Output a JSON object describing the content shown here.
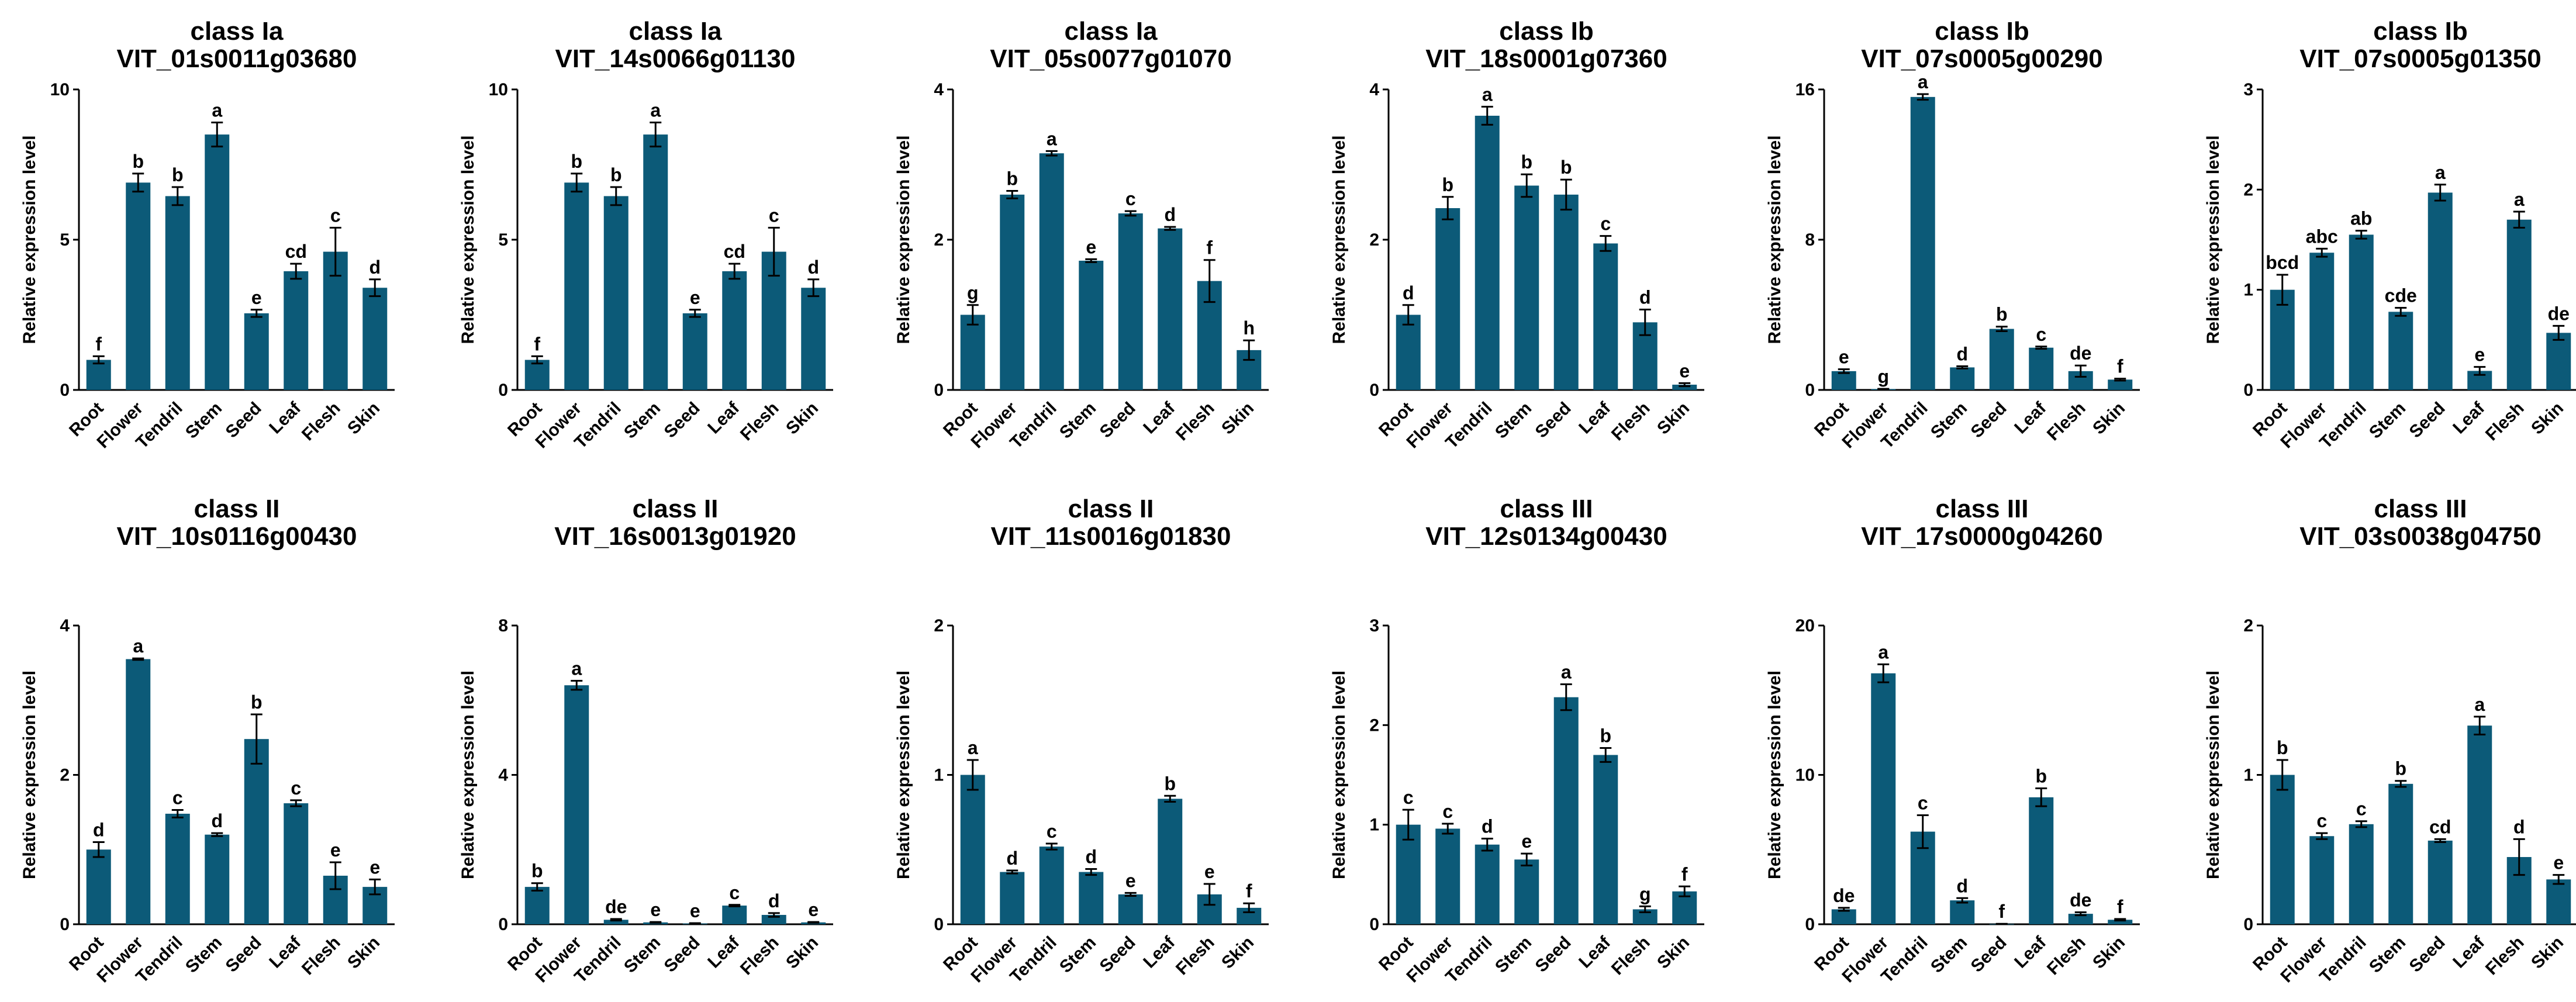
{
  "chart_data": [
    {
      "type": "bar",
      "title": [
        "class Ia",
        "VIT_01s0011g03680"
      ],
      "ylabel": "Relative expression level",
      "categories": [
        "Root",
        "Flower",
        "Tendril",
        "Stem",
        "Seed",
        "Leaf",
        "Flesh",
        "Skin"
      ],
      "values": [
        1.0,
        6.9,
        6.45,
        8.5,
        2.55,
        3.95,
        4.6,
        3.4
      ],
      "errors": [
        0.12,
        0.3,
        0.3,
        0.4,
        0.12,
        0.25,
        0.8,
        0.28
      ],
      "sig": [
        "f",
        "b",
        "b",
        "a",
        "e",
        "cd",
        "c",
        "d"
      ],
      "ylim": [
        0,
        10
      ],
      "yticks": [
        "0",
        "5",
        "10"
      ],
      "ytick_values": [
        0,
        5,
        10
      ]
    },
    {
      "type": "bar",
      "title": [
        "class Ia",
        "VIT_14s0066g01130"
      ],
      "ylabel": "Relative expression level",
      "categories": [
        "Root",
        "Flower",
        "Tendril",
        "Stem",
        "Seed",
        "Leaf",
        "Flesh",
        "Skin"
      ],
      "values": [
        1.0,
        6.9,
        6.45,
        8.5,
        2.55,
        3.95,
        4.6,
        3.4
      ],
      "errors": [
        0.12,
        0.3,
        0.3,
        0.4,
        0.12,
        0.25,
        0.8,
        0.28
      ],
      "sig": [
        "f",
        "b",
        "b",
        "a",
        "e",
        "cd",
        "c",
        "d"
      ],
      "ylim": [
        0,
        10
      ],
      "yticks": [
        "0",
        "5",
        "10"
      ],
      "ytick_values": [
        0,
        5,
        10
      ]
    },
    {
      "type": "bar",
      "title": [
        "class Ia",
        "VIT_05s0077g01070"
      ],
      "ylabel": "Relative expression level",
      "categories": [
        "Root",
        "Flower",
        "Tendril",
        "Stem",
        "Seed",
        "Leaf",
        "Flesh",
        "Skin"
      ],
      "values": [
        1.0,
        2.6,
        3.15,
        1.72,
        2.35,
        2.15,
        1.45,
        0.53
      ],
      "errors": [
        0.13,
        0.05,
        0.03,
        0.02,
        0.03,
        0.02,
        0.28,
        0.13
      ],
      "sig": [
        "g",
        "b",
        "a",
        "e",
        "c",
        "d",
        "f",
        "h"
      ],
      "ylim": [
        0,
        4
      ],
      "yticks": [
        "0",
        "2",
        "4"
      ],
      "ytick_values": [
        0,
        2,
        4
      ]
    },
    {
      "type": "bar",
      "title": [
        "class Ib",
        "VIT_18s0001g07360"
      ],
      "ylabel": "Relative expression level",
      "categories": [
        "Root",
        "Flower",
        "Tendril",
        "Stem",
        "Seed",
        "Leaf",
        "Flesh",
        "Skin"
      ],
      "values": [
        1.0,
        2.42,
        3.65,
        2.72,
        2.6,
        1.95,
        0.9,
        0.07
      ],
      "errors": [
        0.13,
        0.15,
        0.12,
        0.15,
        0.2,
        0.1,
        0.17,
        0.02
      ],
      "sig": [
        "d",
        "b",
        "a",
        "b",
        "b",
        "c",
        "d",
        "e"
      ],
      "ylim": [
        0,
        4
      ],
      "yticks": [
        "0",
        "2",
        "4"
      ],
      "ytick_values": [
        0,
        2,
        4
      ]
    },
    {
      "type": "bar",
      "title": [
        "class Ib",
        "VIT_07s0005g00290"
      ],
      "ylabel": "Relative expression level",
      "categories": [
        "Root",
        "Flower",
        "Tendril",
        "Stem",
        "Seed",
        "Leaf",
        "Flesh",
        "Skin"
      ],
      "values": [
        1.0,
        0.05,
        15.6,
        1.2,
        3.25,
        2.25,
        1.0,
        0.55
      ],
      "errors": [
        0.1,
        0.01,
        0.15,
        0.06,
        0.12,
        0.06,
        0.3,
        0.05
      ],
      "sig": [
        "e",
        "g",
        "a",
        "d",
        "b",
        "c",
        "de",
        "f"
      ],
      "ylim": [
        0,
        16
      ],
      "yticks": [
        "0",
        "8",
        "16"
      ],
      "ytick_values": [
        0,
        8,
        16
      ]
    },
    {
      "type": "bar",
      "title": [
        "class Ib",
        "VIT_07s0005g01350"
      ],
      "ylabel": "Relative expression level",
      "categories": [
        "Root",
        "Flower",
        "Tendril",
        "Stem",
        "Seed",
        "Leaf",
        "Flesh",
        "Skin"
      ],
      "values": [
        1.0,
        1.37,
        1.55,
        0.78,
        1.97,
        0.19,
        1.7,
        0.57
      ],
      "errors": [
        0.15,
        0.04,
        0.04,
        0.04,
        0.08,
        0.04,
        0.08,
        0.07
      ],
      "sig": [
        "bcd",
        "abc",
        "ab",
        "cde",
        "a",
        "e",
        "a",
        "de"
      ],
      "ylim": [
        0,
        3
      ],
      "yticks": [
        "0",
        "1",
        "2",
        "3"
      ],
      "ytick_values": [
        0,
        1,
        2,
        3
      ]
    },
    {
      "type": "bar",
      "title": [
        "class II",
        "VIT_10s0116g00430"
      ],
      "ylabel": "Relative expression level",
      "categories": [
        "Root",
        "Flower",
        "Tendril",
        "Stem",
        "Seed",
        "Leaf",
        "Flesh",
        "Skin"
      ],
      "values": [
        1.0,
        3.55,
        1.48,
        1.2,
        2.48,
        1.62,
        0.65,
        0.5
      ],
      "errors": [
        0.1,
        0.01,
        0.05,
        0.02,
        0.33,
        0.04,
        0.18,
        0.1
      ],
      "sig": [
        "d",
        "a",
        "c",
        "d",
        "b",
        "c",
        "e",
        "e"
      ],
      "ylim": [
        0,
        4
      ],
      "yticks": [
        "0",
        "2",
        "4"
      ],
      "ytick_values": [
        0,
        2,
        4
      ]
    },
    {
      "type": "bar",
      "title": [
        "class II",
        "VIT_16s0013g01920"
      ],
      "ylabel": "Relative expression level",
      "categories": [
        "Root",
        "Flower",
        "Tendril",
        "Stem",
        "Seed",
        "Leaf",
        "Flesh",
        "Skin"
      ],
      "values": [
        1.0,
        6.4,
        0.12,
        0.05,
        0.02,
        0.5,
        0.25,
        0.05
      ],
      "errors": [
        0.1,
        0.12,
        0.02,
        0.01,
        0.01,
        0.02,
        0.05,
        0.01
      ],
      "sig": [
        "b",
        "a",
        "de",
        "e",
        "e",
        "c",
        "d",
        "e"
      ],
      "ylim": [
        0,
        8
      ],
      "yticks": [
        "0",
        "4",
        "8"
      ],
      "ytick_values": [
        0,
        4,
        8
      ]
    },
    {
      "type": "bar",
      "title": [
        "class II",
        "VIT_11s0016g01830"
      ],
      "ylabel": "Relative expression level",
      "categories": [
        "Root",
        "Flower",
        "Tendril",
        "Stem",
        "Seed",
        "Leaf",
        "Flesh",
        "Skin"
      ],
      "values": [
        1.0,
        0.35,
        0.52,
        0.35,
        0.2,
        0.84,
        0.2,
        0.11
      ],
      "errors": [
        0.1,
        0.01,
        0.02,
        0.02,
        0.01,
        0.02,
        0.07,
        0.03
      ],
      "sig": [
        "a",
        "d",
        "c",
        "d",
        "e",
        "b",
        "e",
        "f"
      ],
      "ylim": [
        0,
        2
      ],
      "yticks": [
        "0",
        "1",
        "2"
      ],
      "ytick_values": [
        0,
        1,
        2
      ]
    },
    {
      "type": "bar",
      "title": [
        "class III",
        "VIT_12s0134g00430"
      ],
      "ylabel": "Relative expression level",
      "categories": [
        "Root",
        "Flower",
        "Tendril",
        "Stem",
        "Seed",
        "Leaf",
        "Flesh",
        "Skin"
      ],
      "values": [
        1.0,
        0.96,
        0.8,
        0.65,
        2.28,
        1.7,
        0.15,
        0.33
      ],
      "errors": [
        0.15,
        0.05,
        0.06,
        0.06,
        0.13,
        0.07,
        0.03,
        0.05
      ],
      "sig": [
        "c",
        "c",
        "d",
        "e",
        "a",
        "b",
        "g",
        "f"
      ],
      "ylim": [
        0,
        3
      ],
      "yticks": [
        "0",
        "1",
        "2",
        "3"
      ],
      "ytick_values": [
        0,
        1,
        2,
        3
      ]
    },
    {
      "type": "bar",
      "title": [
        "class III",
        "VIT_17s0000g04260"
      ],
      "ylabel": "Relative expression level",
      "categories": [
        "Root",
        "Flower",
        "Tendril",
        "Stem",
        "Seed",
        "Leaf",
        "Flesh",
        "Skin"
      ],
      "values": [
        1.0,
        16.8,
        6.2,
        1.6,
        0.02,
        8.5,
        0.7,
        0.3
      ],
      "errors": [
        0.1,
        0.6,
        1.1,
        0.15,
        0.01,
        0.6,
        0.1,
        0.05
      ],
      "sig": [
        "de",
        "a",
        "c",
        "d",
        "f",
        "b",
        "de",
        "f"
      ],
      "ylim": [
        0,
        20
      ],
      "yticks": [
        "0",
        "10",
        "20"
      ],
      "ytick_values": [
        0,
        10,
        20
      ]
    },
    {
      "type": "bar",
      "title": [
        "class III",
        "VIT_03s0038g04750"
      ],
      "ylabel": "Relative expression level",
      "categories": [
        "Root",
        "Flower",
        "Tendril",
        "Stem",
        "Seed",
        "Leaf",
        "Flesh",
        "Skin"
      ],
      "values": [
        1.0,
        0.59,
        0.67,
        0.94,
        0.56,
        1.33,
        0.45,
        0.3
      ],
      "errors": [
        0.1,
        0.02,
        0.02,
        0.02,
        0.01,
        0.06,
        0.12,
        0.03
      ],
      "sig": [
        "b",
        "c",
        "c",
        "b",
        "cd",
        "a",
        "d",
        "e"
      ],
      "ylim": [
        0,
        2
      ],
      "yticks": [
        "0",
        "1",
        "2"
      ],
      "ytick_values": [
        0,
        1,
        2
      ]
    }
  ],
  "colors": {
    "bar": "#0c5a78",
    "axis": "#000000",
    "text": "#000000"
  }
}
